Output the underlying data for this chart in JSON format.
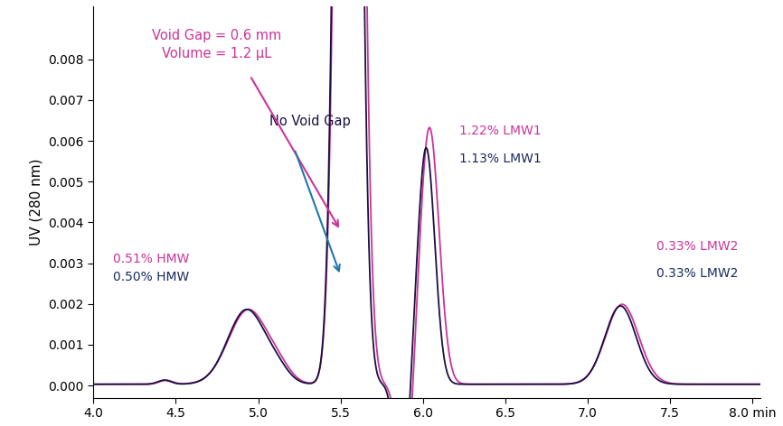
{
  "xlim": [
    4.0,
    8.05
  ],
  "ylim": [
    -0.0003,
    0.0093
  ],
  "color_void": "#cc3399",
  "color_novoid": "#1a1040",
  "annotation_void_gap": "Void Gap = 0.6 mm\nVolume = 1.2 μL",
  "annotation_novoid": "No Void Gap",
  "annotation_hmw_void": "0.51% HMW",
  "annotation_hmw_novoid": "0.50% HMW",
  "annotation_lmw1_void": "1.22% LMW1",
  "annotation_lmw1_novoid": "1.13% LMW1",
  "annotation_lmw2_void": "0.33% LMW2",
  "annotation_lmw2_novoid": "0.33% LMW2",
  "yticks": [
    0.0,
    0.001,
    0.002,
    0.003,
    0.004,
    0.005,
    0.006,
    0.007,
    0.008
  ],
  "xticks": [
    4.0,
    4.5,
    5.0,
    5.5,
    6.0,
    6.5,
    7.0,
    7.5,
    8.0
  ],
  "tick_fontsize": 10,
  "label_fontsize": 11
}
